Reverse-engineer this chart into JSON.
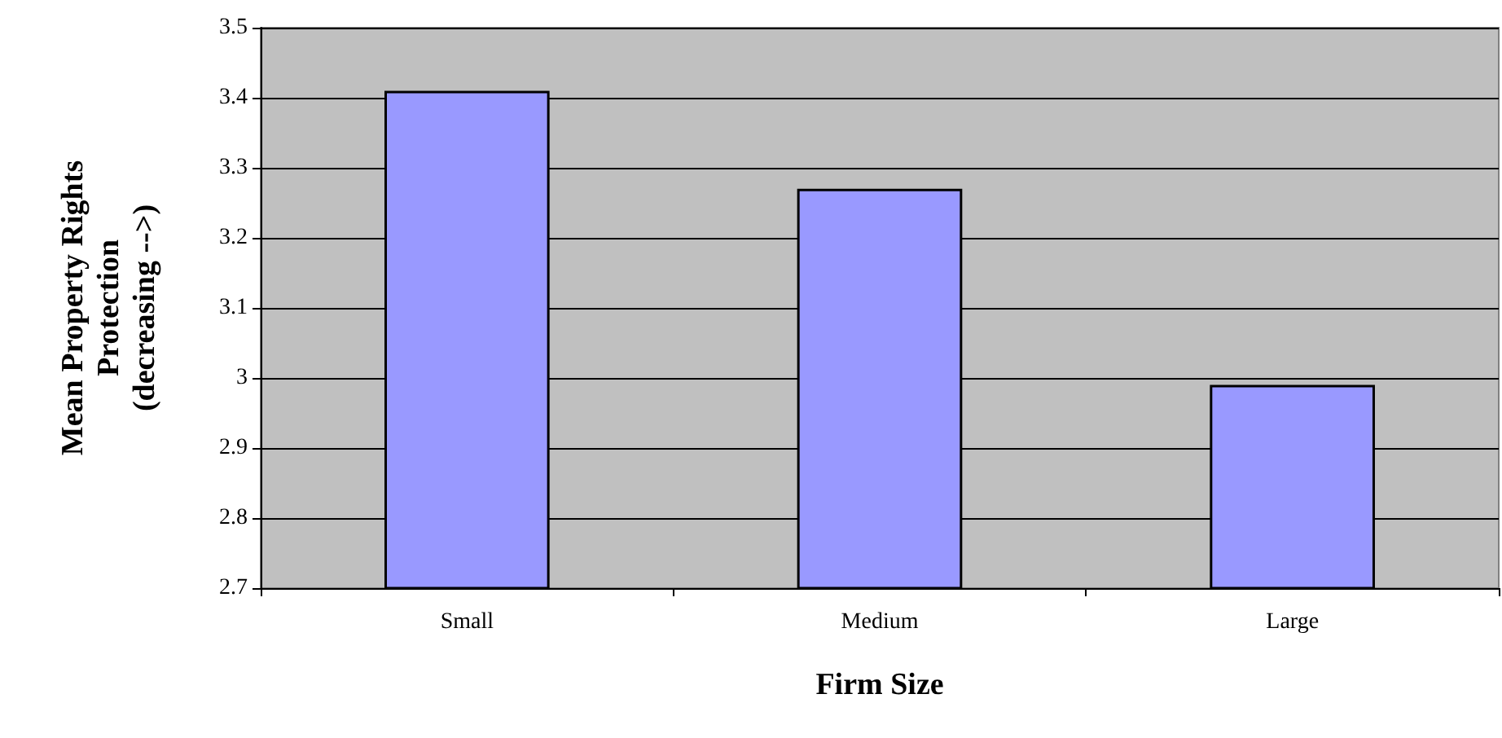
{
  "chart_data": {
    "type": "bar",
    "xlabel": "Firm Size",
    "ylabel": "Mean Property Rights\nProtection\n(decreasing -->)",
    "categories": [
      "Small",
      "Medium",
      "Large"
    ],
    "values": [
      3.41,
      3.27,
      2.99
    ],
    "color": "#9999ff",
    "ylim": [
      2.7,
      3.5
    ],
    "yticks": [
      2.7,
      2.8,
      2.9,
      3,
      3.1,
      3.2,
      3.3,
      3.4,
      3.5
    ],
    "grid": "y"
  }
}
